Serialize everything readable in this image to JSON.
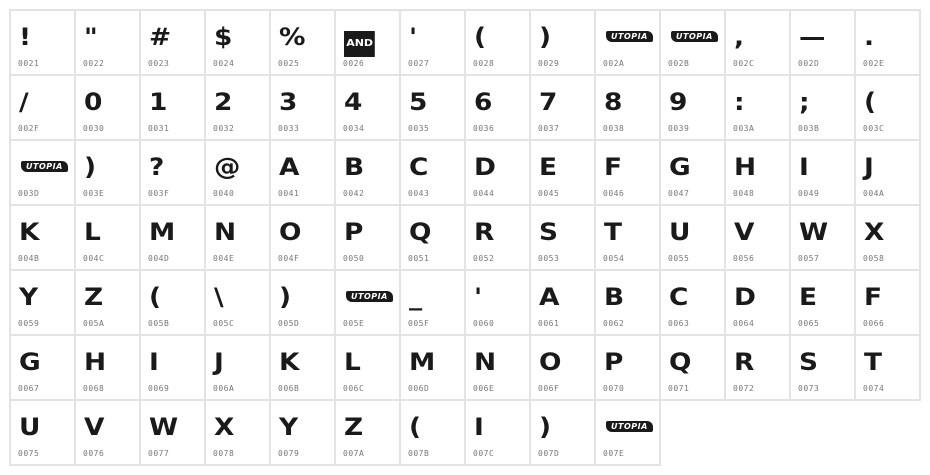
{
  "logo_text": "UTOPIA",
  "cells": [
    {
      "g": "!",
      "c": "0021"
    },
    {
      "g": "\"",
      "c": "0022"
    },
    {
      "g": "#",
      "c": "0023"
    },
    {
      "g": "$",
      "c": "0024"
    },
    {
      "g": "%",
      "c": "0025"
    },
    {
      "g": "AND",
      "c": "0026"
    },
    {
      "g": "'",
      "c": "0027"
    },
    {
      "g": "(",
      "c": "0028"
    },
    {
      "g": ")",
      "c": "0029"
    },
    {
      "logo": true,
      "c": "002A"
    },
    {
      "logo": true,
      "c": "002B"
    },
    {
      "g": ",",
      "c": "002C"
    },
    {
      "g": "—",
      "c": "002D"
    },
    {
      "g": ".",
      "c": "002E"
    },
    {
      "g": "/",
      "c": "002F"
    },
    {
      "g": "0",
      "c": "0030"
    },
    {
      "g": "1",
      "c": "0031"
    },
    {
      "g": "2",
      "c": "0032"
    },
    {
      "g": "3",
      "c": "0033"
    },
    {
      "g": "4",
      "c": "0034"
    },
    {
      "g": "5",
      "c": "0035"
    },
    {
      "g": "6",
      "c": "0036"
    },
    {
      "g": "7",
      "c": "0037"
    },
    {
      "g": "8",
      "c": "0038"
    },
    {
      "g": "9",
      "c": "0039"
    },
    {
      "g": ":",
      "c": "003A"
    },
    {
      "g": ";",
      "c": "003B"
    },
    {
      "g": "(",
      "c": "003C"
    },
    {
      "logo": true,
      "c": "003D"
    },
    {
      "g": ")",
      "c": "003E"
    },
    {
      "g": "?",
      "c": "003F"
    },
    {
      "g": "@",
      "c": "0040"
    },
    {
      "g": "A",
      "c": "0041"
    },
    {
      "g": "B",
      "c": "0042"
    },
    {
      "g": "C",
      "c": "0043"
    },
    {
      "g": "D",
      "c": "0044"
    },
    {
      "g": "E",
      "c": "0045"
    },
    {
      "g": "F",
      "c": "0046"
    },
    {
      "g": "G",
      "c": "0047"
    },
    {
      "g": "H",
      "c": "0048"
    },
    {
      "g": "I",
      "c": "0049"
    },
    {
      "g": "J",
      "c": "004A"
    },
    {
      "g": "K",
      "c": "004B"
    },
    {
      "g": "L",
      "c": "004C"
    },
    {
      "g": "M",
      "c": "004D"
    },
    {
      "g": "N",
      "c": "004E"
    },
    {
      "g": "O",
      "c": "004F"
    },
    {
      "g": "P",
      "c": "0050"
    },
    {
      "g": "Q",
      "c": "0051"
    },
    {
      "g": "R",
      "c": "0052"
    },
    {
      "g": "S",
      "c": "0053"
    },
    {
      "g": "T",
      "c": "0054"
    },
    {
      "g": "U",
      "c": "0055"
    },
    {
      "g": "V",
      "c": "0056"
    },
    {
      "g": "W",
      "c": "0057"
    },
    {
      "g": "X",
      "c": "0058"
    },
    {
      "g": "Y",
      "c": "0059"
    },
    {
      "g": "Z",
      "c": "005A"
    },
    {
      "g": "(",
      "c": "005B"
    },
    {
      "g": "\\",
      "c": "005C"
    },
    {
      "g": ")",
      "c": "005D"
    },
    {
      "logo": true,
      "c": "005E"
    },
    {
      "g": "_",
      "c": "005F"
    },
    {
      "g": "'",
      "c": "0060"
    },
    {
      "g": "A",
      "c": "0061"
    },
    {
      "g": "B",
      "c": "0062"
    },
    {
      "g": "C",
      "c": "0063"
    },
    {
      "g": "D",
      "c": "0064"
    },
    {
      "g": "E",
      "c": "0065"
    },
    {
      "g": "F",
      "c": "0066"
    },
    {
      "g": "G",
      "c": "0067"
    },
    {
      "g": "H",
      "c": "0068"
    },
    {
      "g": "I",
      "c": "0069"
    },
    {
      "g": "J",
      "c": "006A"
    },
    {
      "g": "K",
      "c": "006B"
    },
    {
      "g": "L",
      "c": "006C"
    },
    {
      "g": "M",
      "c": "006D"
    },
    {
      "g": "N",
      "c": "006E"
    },
    {
      "g": "O",
      "c": "006F"
    },
    {
      "g": "P",
      "c": "0070"
    },
    {
      "g": "Q",
      "c": "0071"
    },
    {
      "g": "R",
      "c": "0072"
    },
    {
      "g": "S",
      "c": "0073"
    },
    {
      "g": "T",
      "c": "0074"
    },
    {
      "g": "U",
      "c": "0075"
    },
    {
      "g": "V",
      "c": "0076"
    },
    {
      "g": "W",
      "c": "0077"
    },
    {
      "g": "X",
      "c": "0078"
    },
    {
      "g": "Y",
      "c": "0079"
    },
    {
      "g": "Z",
      "c": "007A"
    },
    {
      "g": "(",
      "c": "007B"
    },
    {
      "g": "I",
      "c": "007C"
    },
    {
      "g": ")",
      "c": "007D"
    },
    {
      "logo": true,
      "c": "007E"
    }
  ]
}
